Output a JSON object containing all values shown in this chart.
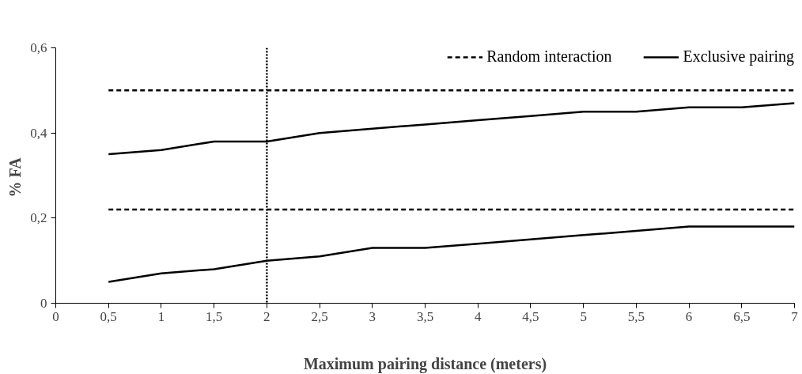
{
  "chart_data": {
    "type": "line",
    "xlabel": "Maximum pairing distance (meters)",
    "ylabel": "%  FA",
    "x": [
      0.5,
      1,
      1.5,
      2,
      2.5,
      3,
      3.5,
      4,
      4.5,
      5,
      5.5,
      6,
      6.5,
      7
    ],
    "series": [
      {
        "name": "Random interaction",
        "color": "#000000",
        "line_style": "dashed",
        "values": [
          0.5,
          0.5,
          0.5,
          0.5,
          0.5,
          0.5,
          0.5,
          0.5,
          0.5,
          0.5,
          0.5,
          0.5,
          0.5,
          0.5
        ]
      },
      {
        "name": "Exclusive pairing",
        "color": "#000000",
        "line_style": "solid",
        "values": [
          0.35,
          0.36,
          0.38,
          0.38,
          0.4,
          0.41,
          0.42,
          0.43,
          0.44,
          0.45,
          0.45,
          0.46,
          0.46,
          0.47
        ]
      },
      {
        "color": "#000000",
        "line_style": "dashed",
        "values": [
          0.22,
          0.22,
          0.22,
          0.22,
          0.22,
          0.22,
          0.22,
          0.22,
          0.22,
          0.22,
          0.22,
          0.22,
          0.22,
          0.22
        ]
      },
      {
        "color": "#000000",
        "line_style": "solid",
        "values": [
          0.05,
          0.07,
          0.08,
          0.1,
          0.11,
          0.13,
          0.13,
          0.14,
          0.15,
          0.16,
          0.17,
          0.18,
          0.18,
          0.18
        ]
      }
    ],
    "xlim": [
      0,
      7
    ],
    "xticks": [
      0,
      {
        "value": 0.5,
        "label": "0,5"
      },
      1,
      {
        "value": 1.5,
        "label": "1,5"
      },
      2,
      {
        "value": 2.5,
        "label": "2,5"
      },
      3,
      {
        "value": 3.5,
        "label": "3,5"
      },
      4,
      {
        "value": 4.5,
        "label": "4,5"
      },
      5,
      {
        "value": 5.5,
        "label": "5,5"
      },
      6,
      {
        "value": 6.5,
        "label": "6,5"
      },
      7
    ],
    "ylim": [
      0,
      0.6
    ],
    "yticks": [
      0,
      {
        "value": 0.2,
        "label": "0,2"
      },
      {
        "value": 0.4,
        "label": "0,4"
      },
      {
        "value": 0.6,
        "label": "0,6"
      }
    ],
    "ref_lines": [
      {
        "axis": "x",
        "value": 2,
        "color": "#000000",
        "line_style": "dotted"
      }
    ],
    "legend": "top right",
    "grid": false,
    "marker": "none"
  }
}
